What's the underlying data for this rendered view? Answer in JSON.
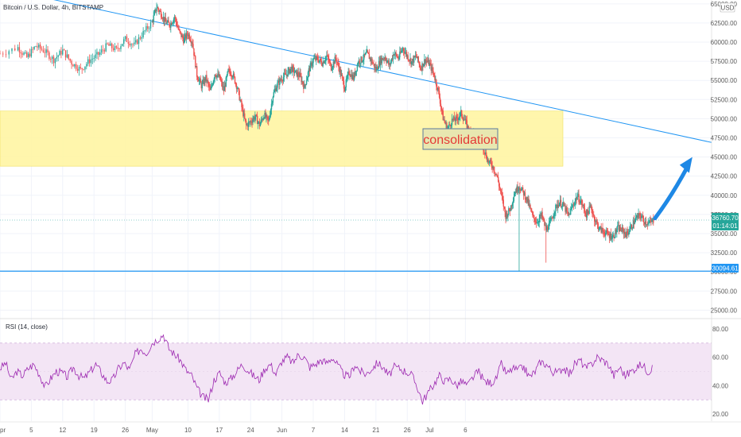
{
  "header": {
    "symbol_title": "Bitcoin / U.S. Dollar, 4h, BITSTAMP",
    "currency_badge": "USD"
  },
  "rsi_panel": {
    "label": "RSI (14, close)"
  },
  "annotation": {
    "text": "consolidation"
  },
  "price_tags": {
    "last_price": "36760.70",
    "countdown": "01:14:01",
    "support": "30094.61"
  },
  "colors": {
    "up": "#26a69a",
    "down": "#ef5350",
    "trendline": "#2196f3",
    "zone": "#fff59d",
    "rsi_line": "#9c27b0",
    "rsi_band": "#f3e5f5",
    "arrow": "#1e88e5"
  },
  "chart_data": [
    {
      "type": "candlestick",
      "title": "Bitcoin / U.S. Dollar, 4h, BITSTAMP",
      "x_ticks": [
        "pr",
        "5",
        "12",
        "19",
        "26",
        "May",
        "10",
        "17",
        "24",
        "Jun",
        "7",
        "14",
        "21",
        "26",
        "Jul",
        "6"
      ],
      "y_ticks": [
        "65000.00",
        "62500.00",
        "60000.00",
        "57500.00",
        "55000.00",
        "52500.00",
        "50000.00",
        "47500.00",
        "45000.00",
        "42500.00",
        "40000.00",
        "37500.00",
        "35000.00",
        "32500.00",
        "30000.00",
        "27500.00",
        "25000.00"
      ],
      "ylim": [
        24000,
        65500
      ],
      "x_range_days": [
        -62,
        97
      ],
      "last_price": 36760.7,
      "support_level": 30094.61,
      "consolidation_zone": [
        43800,
        51000
      ],
      "trendline": {
        "from": {
          "day": -52,
          "price": 65800
        },
        "to": {
          "day": 97,
          "price": 46900
        }
      },
      "price_path": [
        [
          -62,
          58500
        ],
        [
          -58,
          59300
        ],
        [
          -56,
          58000
        ],
        [
          -54,
          59500
        ],
        [
          -52,
          58800
        ],
        [
          -50,
          57700
        ],
        [
          -48,
          58900
        ],
        [
          -46,
          57300
        ],
        [
          -44,
          56400
        ],
        [
          -42,
          57600
        ],
        [
          -40,
          58400
        ],
        [
          -38,
          59600
        ],
        [
          -36,
          59000
        ],
        [
          -34,
          60400
        ],
        [
          -32,
          59600
        ],
        [
          -30,
          61200
        ],
        [
          -28,
          62600
        ],
        [
          -27,
          64600
        ],
        [
          -26,
          63700
        ],
        [
          -25,
          62600
        ],
        [
          -24,
          62300
        ],
        [
          -23,
          63300
        ],
        [
          -22,
          61400
        ],
        [
          -21,
          60300
        ],
        [
          -20,
          61100
        ],
        [
          -19,
          60000
        ],
        [
          -18,
          55700
        ],
        [
          -17,
          54300
        ],
        [
          -16,
          55300
        ],
        [
          -15,
          53600
        ],
        [
          -14,
          55900
        ],
        [
          -13,
          55400
        ],
        [
          -12,
          53700
        ],
        [
          -11,
          56200
        ],
        [
          -10,
          55800
        ],
        [
          -9,
          54100
        ],
        [
          -8,
          51500
        ],
        [
          -7,
          49100
        ],
        [
          -6,
          49600
        ],
        [
          -5,
          50300
        ],
        [
          -4,
          49200
        ],
        [
          -3,
          50500
        ],
        [
          -2,
          49600
        ],
        [
          -1,
          53100
        ],
        [
          0,
          54500
        ],
        [
          1,
          55300
        ],
        [
          2,
          55800
        ],
        [
          3,
          56600
        ],
        [
          4,
          56000
        ],
        [
          5,
          55600
        ],
        [
          6,
          54100
        ],
        [
          7,
          56300
        ],
        [
          8,
          57700
        ],
        [
          9,
          57800
        ],
        [
          10,
          57300
        ],
        [
          11,
          58200
        ],
        [
          12,
          56700
        ],
        [
          13,
          57900
        ],
        [
          14,
          56200
        ],
        [
          15,
          54000
        ],
        [
          16,
          56100
        ],
        [
          17,
          55300
        ],
        [
          18,
          57400
        ],
        [
          19,
          57800
        ],
        [
          20,
          58500
        ],
        [
          21,
          57600
        ],
        [
          22,
          56400
        ],
        [
          23,
          57600
        ],
        [
          24,
          58100
        ],
        [
          25,
          56900
        ],
        [
          26,
          58600
        ],
        [
          27,
          57900
        ],
        [
          28,
          59200
        ],
        [
          29,
          58200
        ],
        [
          30,
          57400
        ],
        [
          31,
          58200
        ],
        [
          32,
          56600
        ],
        [
          33,
          57700
        ],
        [
          34,
          57100
        ],
        [
          35,
          55700
        ],
        [
          36,
          53400
        ],
        [
          37,
          50100
        ],
        [
          38,
          48600
        ],
        [
          39,
          49800
        ],
        [
          40,
          49900
        ],
        [
          41,
          50700
        ],
        [
          42,
          49600
        ],
        [
          43,
          48100
        ],
        [
          44,
          48400
        ],
        [
          45,
          47300
        ],
        [
          46,
          46300
        ],
        [
          47,
          44500
        ],
        [
          48,
          43900
        ],
        [
          49,
          42600
        ],
        [
          50,
          40100
        ],
        [
          51,
          37300
        ],
        [
          52,
          38200
        ],
        [
          53,
          40400
        ],
        [
          54,
          41200
        ],
        [
          55,
          40300
        ],
        [
          56,
          39100
        ],
        [
          57,
          37200
        ],
        [
          58,
          36500
        ],
        [
          59,
          37400
        ],
        [
          60,
          35500
        ],
        [
          61,
          36400
        ],
        [
          62,
          38200
        ],
        [
          63,
          39100
        ],
        [
          64,
          38600
        ],
        [
          65,
          37300
        ],
        [
          66,
          38700
        ],
        [
          67,
          39900
        ],
        [
          68,
          38900
        ],
        [
          69,
          37500
        ],
        [
          70,
          38500
        ],
        [
          71,
          36700
        ],
        [
          72,
          35600
        ],
        [
          73,
          35200
        ],
        [
          74,
          34800
        ],
        [
          75,
          34600
        ],
        [
          76,
          35700
        ],
        [
          77,
          35400
        ],
        [
          78,
          34900
        ],
        [
          79,
          35800
        ],
        [
          80,
          36900
        ],
        [
          81,
          37400
        ],
        [
          82,
          36600
        ],
        [
          83,
          36300
        ],
        [
          84,
          36760
        ]
      ],
      "notable_wicks": [
        {
          "day": 54,
          "low": 30094.61
        },
        {
          "day": 60,
          "low": 31200
        }
      ]
    },
    {
      "type": "line",
      "title": "RSI (14, close)",
      "y_ticks": [
        "80.00",
        "60.00",
        "40.00",
        "20.00"
      ],
      "ylim": [
        15,
        85
      ],
      "band": [
        30,
        70
      ],
      "series": [
        {
          "values": [
            52,
            56,
            44,
            50,
            47,
            52,
            55,
            48,
            39,
            45,
            50,
            49,
            46,
            53,
            47,
            45,
            50,
            55,
            49,
            43,
            44,
            52,
            56,
            51,
            62,
            66,
            63,
            70,
            73,
            76,
            66,
            62,
            58,
            51,
            47,
            38,
            32,
            30,
            44,
            49,
            42,
            45,
            50,
            55,
            51,
            47,
            44,
            52,
            55,
            48,
            57,
            60,
            56,
            62,
            60,
            53,
            55,
            58,
            56,
            60,
            54,
            48,
            46,
            55,
            50,
            48,
            52,
            56,
            53,
            47,
            53,
            52,
            50,
            48,
            40,
            29,
            35,
            41,
            47,
            43,
            45,
            40,
            43,
            40,
            46,
            50,
            43,
            42,
            44,
            55,
            48,
            52,
            51,
            53,
            46,
            50,
            57,
            55,
            50,
            49,
            53,
            48,
            55,
            58,
            52,
            55,
            60,
            58,
            55,
            47,
            53,
            47,
            50,
            53,
            55,
            50,
            52
          ]
        }
      ]
    }
  ]
}
